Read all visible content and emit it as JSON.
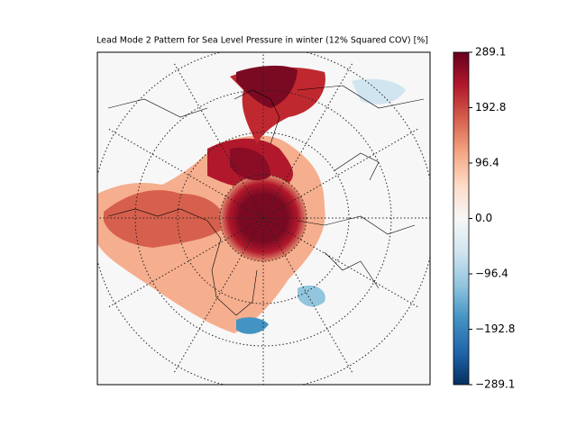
{
  "title": "Lead Mode 2 Pattern for Sea Level Pressure in winter (12% Squared COV) [%]",
  "colorbar": {
    "lim": [
      -289.1,
      289.1
    ],
    "colors": [
      "#053061",
      "#2166ac",
      "#4393c3",
      "#92c5de",
      "#d1e5f0",
      "#f7f7f7",
      "#fddbc7",
      "#f4a582",
      "#d6604d",
      "#b2182b",
      "#67001f"
    ],
    "ticks": [
      {
        "value": -289.1,
        "label": "−289.1"
      },
      {
        "value": -192.8,
        "label": "−192.8"
      },
      {
        "value": -96.4,
        "label": "−96.4"
      },
      {
        "value": 0,
        "label": "0.0"
      },
      96.4,
      192.8,
      289.1
    ]
  }
}
